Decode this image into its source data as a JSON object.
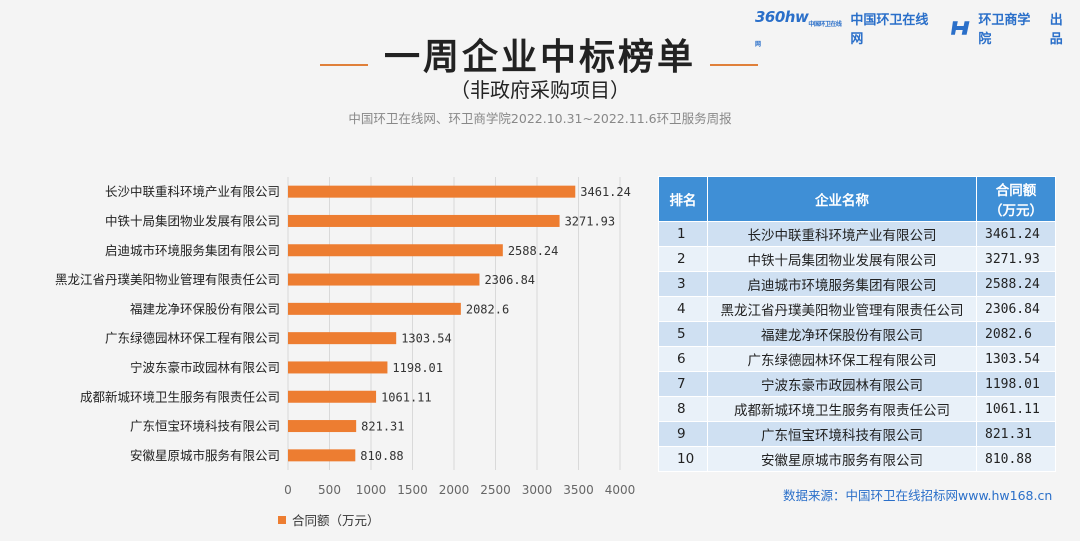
{
  "brand": {
    "logo": "360hw",
    "logo_sub": "中国环卫在线网",
    "site": "中国环卫在线网",
    "school": "环卫商学院",
    "chupin": "出品"
  },
  "header": {
    "title": "一周企业中标榜单",
    "subtitle": "（非政府采购项目）",
    "source": "中国环卫在线网、环卫商学院2022.10.31~2022.11.6环卫服务周报"
  },
  "chart_data": {
    "type": "bar",
    "orientation": "horizontal",
    "categories": [
      "长沙中联重科环境产业有限公司",
      "中铁十局集团物业发展有限公司",
      "启迪城市环境服务集团有限公司",
      "黑龙江省丹璞美阳物业管理有限责任公司",
      "福建龙净环保股份有限公司",
      "广东绿德园林环保工程有限公司",
      "宁波东豪市政园林有限公司",
      "成都新城环境卫生服务有限责任公司",
      "广东恒宝环境科技有限公司",
      "安徽星原城市服务有限公司"
    ],
    "values": [
      3461.24,
      3271.93,
      2588.24,
      2306.84,
      2082.6,
      1303.54,
      1198.01,
      1061.11,
      821.31,
      810.88
    ],
    "value_labels": [
      "3461.24",
      "3271.93",
      "2588.24",
      "2306.84",
      "2082.6",
      "1303.54",
      "1198.01",
      "1061.11",
      "821.31",
      "810.88"
    ],
    "xlim": [
      0,
      4000
    ],
    "xticks": [
      "0",
      "500",
      "1000",
      "1500",
      "2000",
      "2500",
      "3000",
      "3500",
      "4000"
    ],
    "legend": "合同额（万元）",
    "color": "#ed7d31"
  },
  "table": {
    "headers": {
      "rank": "排名",
      "name": "企业名称",
      "amount_l1": "合同额",
      "amount_l2": "（万元）"
    },
    "rows": [
      {
        "rank": "1",
        "name": "长沙中联重科环境产业有限公司",
        "amount": "3461.24"
      },
      {
        "rank": "2",
        "name": "中铁十局集团物业发展有限公司",
        "amount": "3271.93"
      },
      {
        "rank": "3",
        "name": "启迪城市环境服务集团有限公司",
        "amount": "2588.24"
      },
      {
        "rank": "4",
        "name": "黑龙江省丹璞美阳物业管理有限责任公司",
        "amount": "2306.84"
      },
      {
        "rank": "5",
        "name": "福建龙净环保股份有限公司",
        "amount": "2082.6"
      },
      {
        "rank": "6",
        "name": "广东绿德园林环保工程有限公司",
        "amount": "1303.54"
      },
      {
        "rank": "7",
        "name": "宁波东豪市政园林有限公司",
        "amount": "1198.01"
      },
      {
        "rank": "8",
        "name": "成都新城环境卫生服务有限责任公司",
        "amount": "1061.11"
      },
      {
        "rank": "9",
        "name": "广东恒宝环境科技有限公司",
        "amount": "821.31"
      },
      {
        "rank": "10",
        "name": "安徽星原城市服务有限公司",
        "amount": "810.88"
      }
    ]
  },
  "footer": {
    "source": "数据来源：中国环卫在线招标网www.hw168.cn"
  }
}
